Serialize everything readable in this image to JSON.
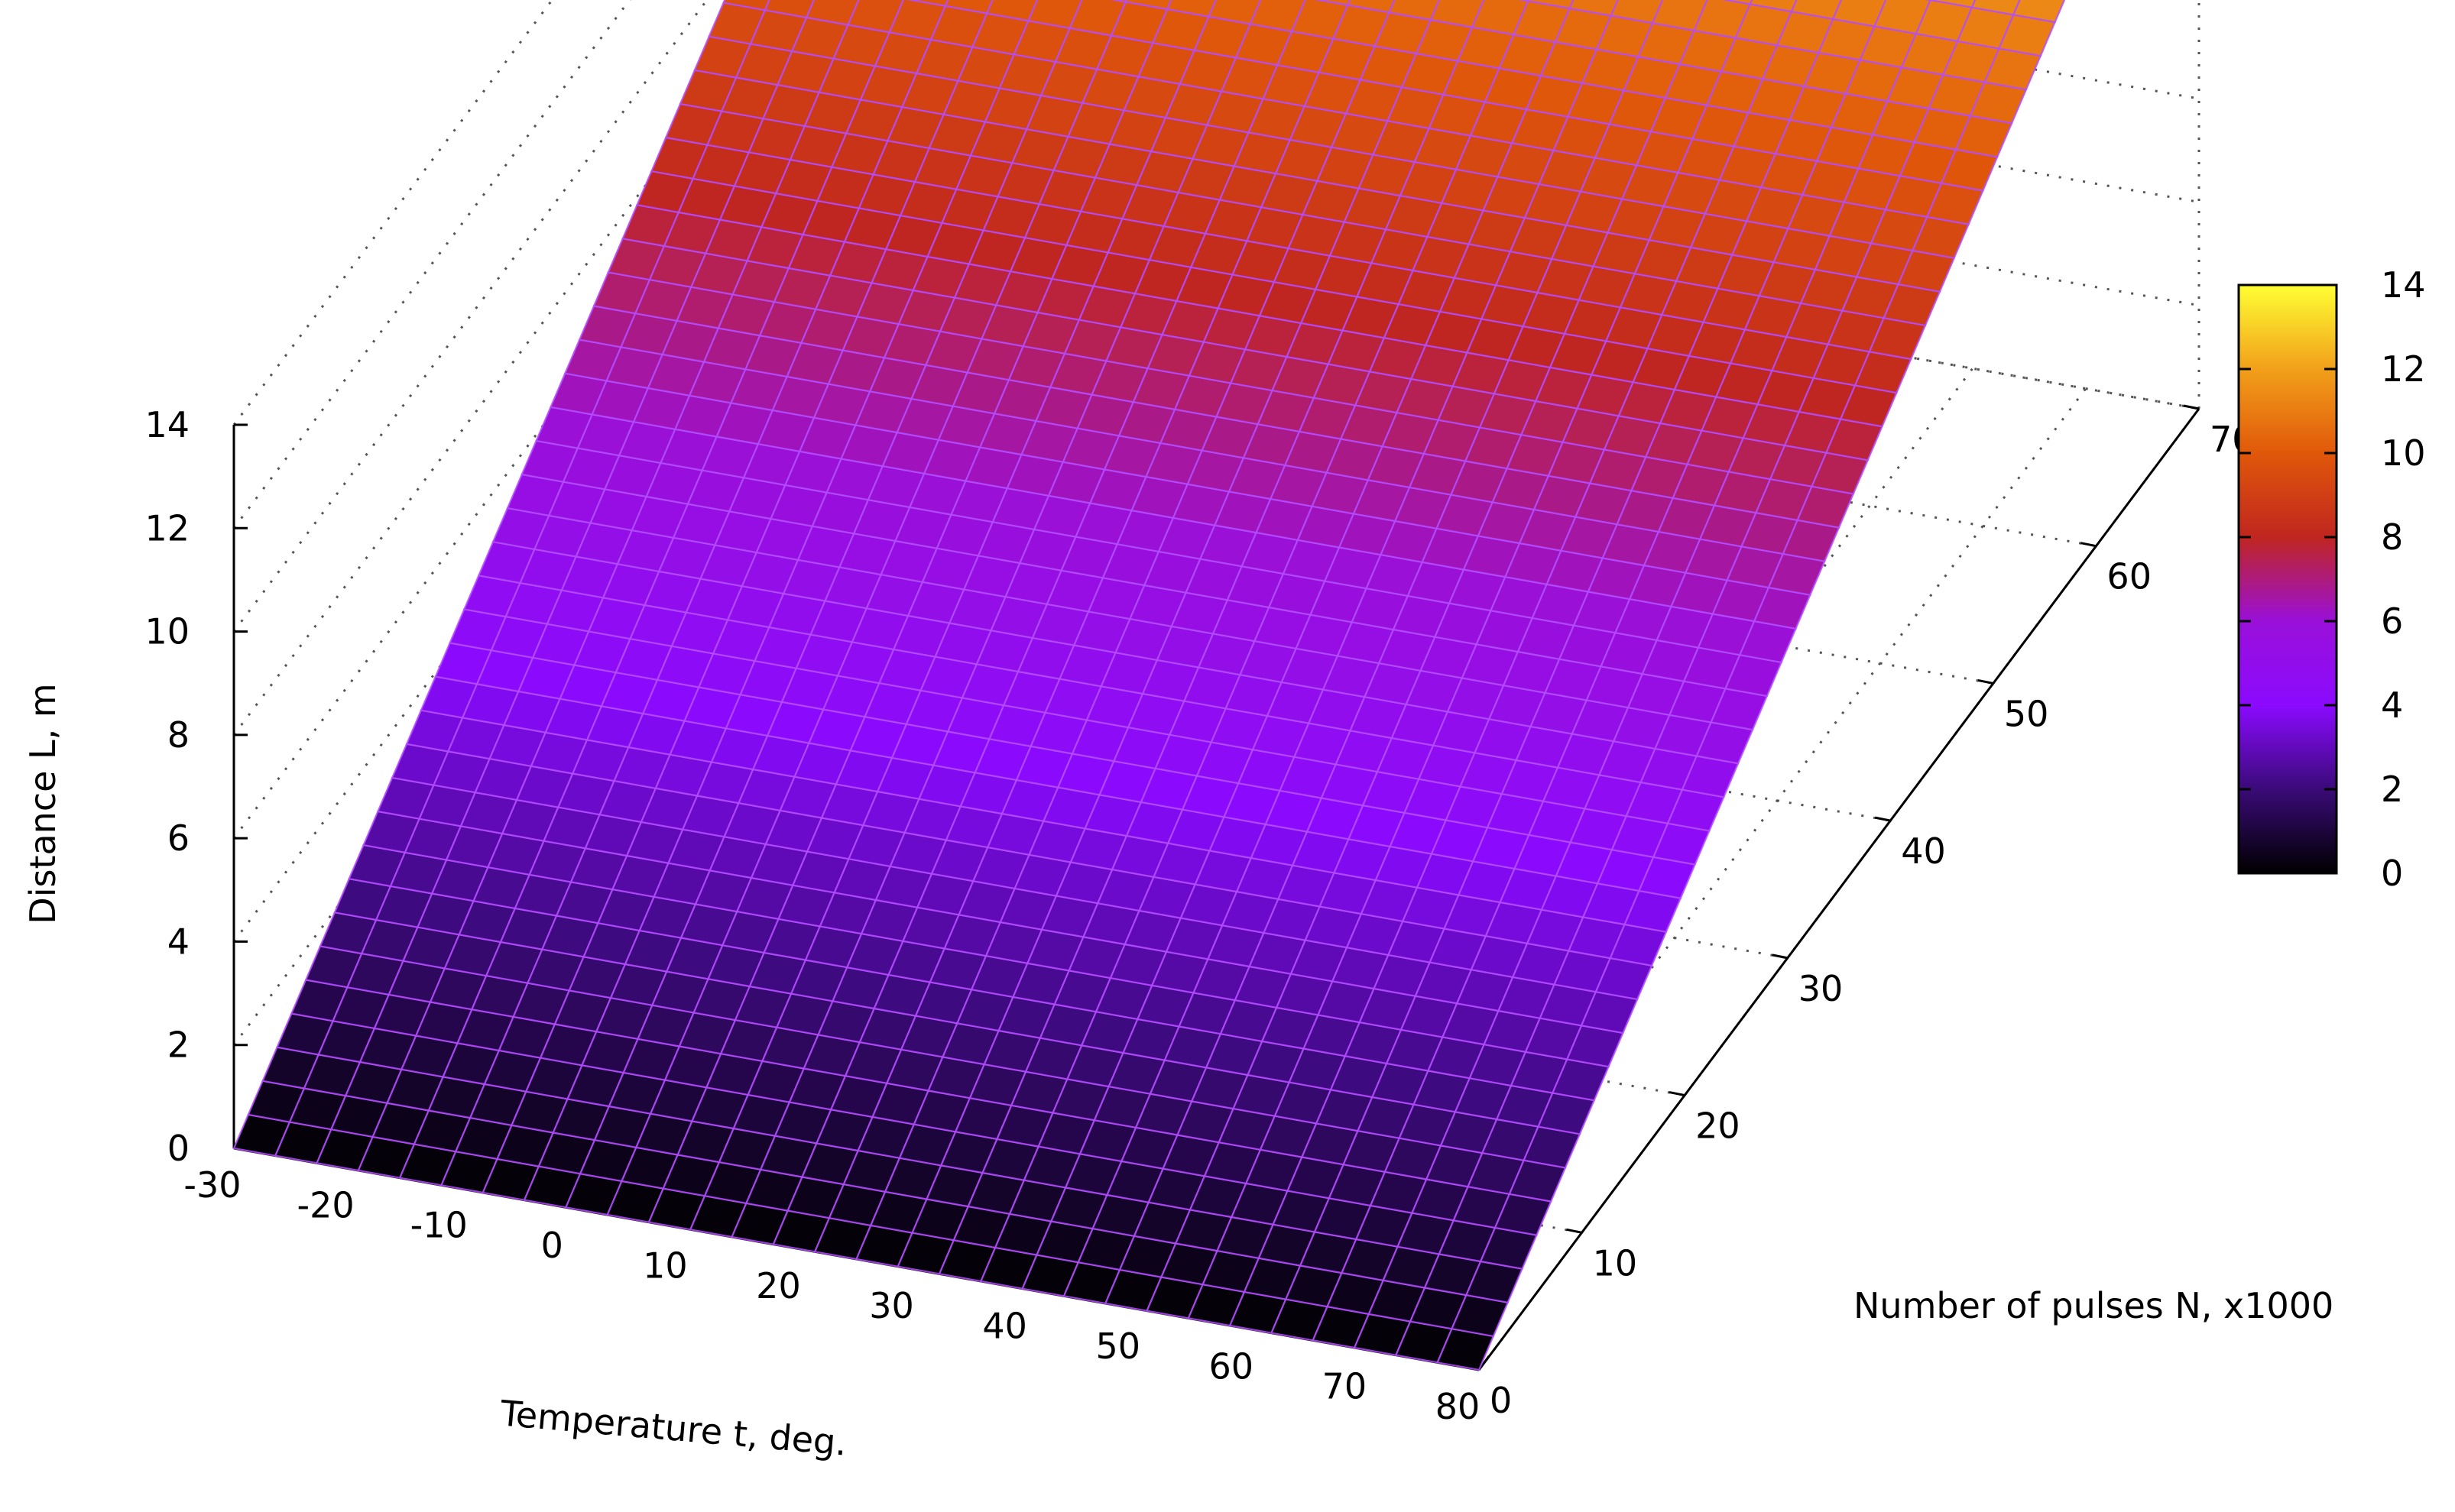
{
  "chart_data": {
    "type": "surface",
    "title": "",
    "xlabel": "Temperature t, deg.",
    "ylabel": "Number of pulses N, x1000",
    "zlabel": "Distance L, m",
    "x_ticks": [
      "-30",
      "-20",
      "-10",
      "0",
      "10",
      "20",
      "30",
      "40",
      "50",
      "60",
      "70",
      "80"
    ],
    "y_ticks": [
      "0",
      "10",
      "20",
      "30",
      "40",
      "50",
      "60",
      "70"
    ],
    "z_ticks": [
      "0",
      "2",
      "4",
      "6",
      "8",
      "10",
      "12",
      "14"
    ],
    "colorbar_ticks": [
      "0",
      "2",
      "4",
      "6",
      "8",
      "10",
      "12",
      "14"
    ],
    "xlim": [
      -30,
      80
    ],
    "ylim": [
      0,
      70
    ],
    "zlim": [
      0,
      14
    ],
    "colorbar_range": [
      0,
      14
    ],
    "colormap": [
      "#000000",
      "#3a0a78",
      "#8b0aff",
      "#9a10d8",
      "#c0261f",
      "#e0580a",
      "#f2a01a",
      "#ffff33"
    ],
    "grid": true,
    "surface": {
      "x_range": [
        -30,
        80
      ],
      "y_range": [
        0,
        70
      ],
      "corners": [
        {
          "x": -30,
          "y": 0,
          "z": 0
        },
        {
          "x": 80,
          "y": 0,
          "z": 0
        },
        {
          "x": -30,
          "y": 70,
          "z": 14
        },
        {
          "x": 80,
          "y": 70,
          "z": 14
        }
      ]
    }
  }
}
